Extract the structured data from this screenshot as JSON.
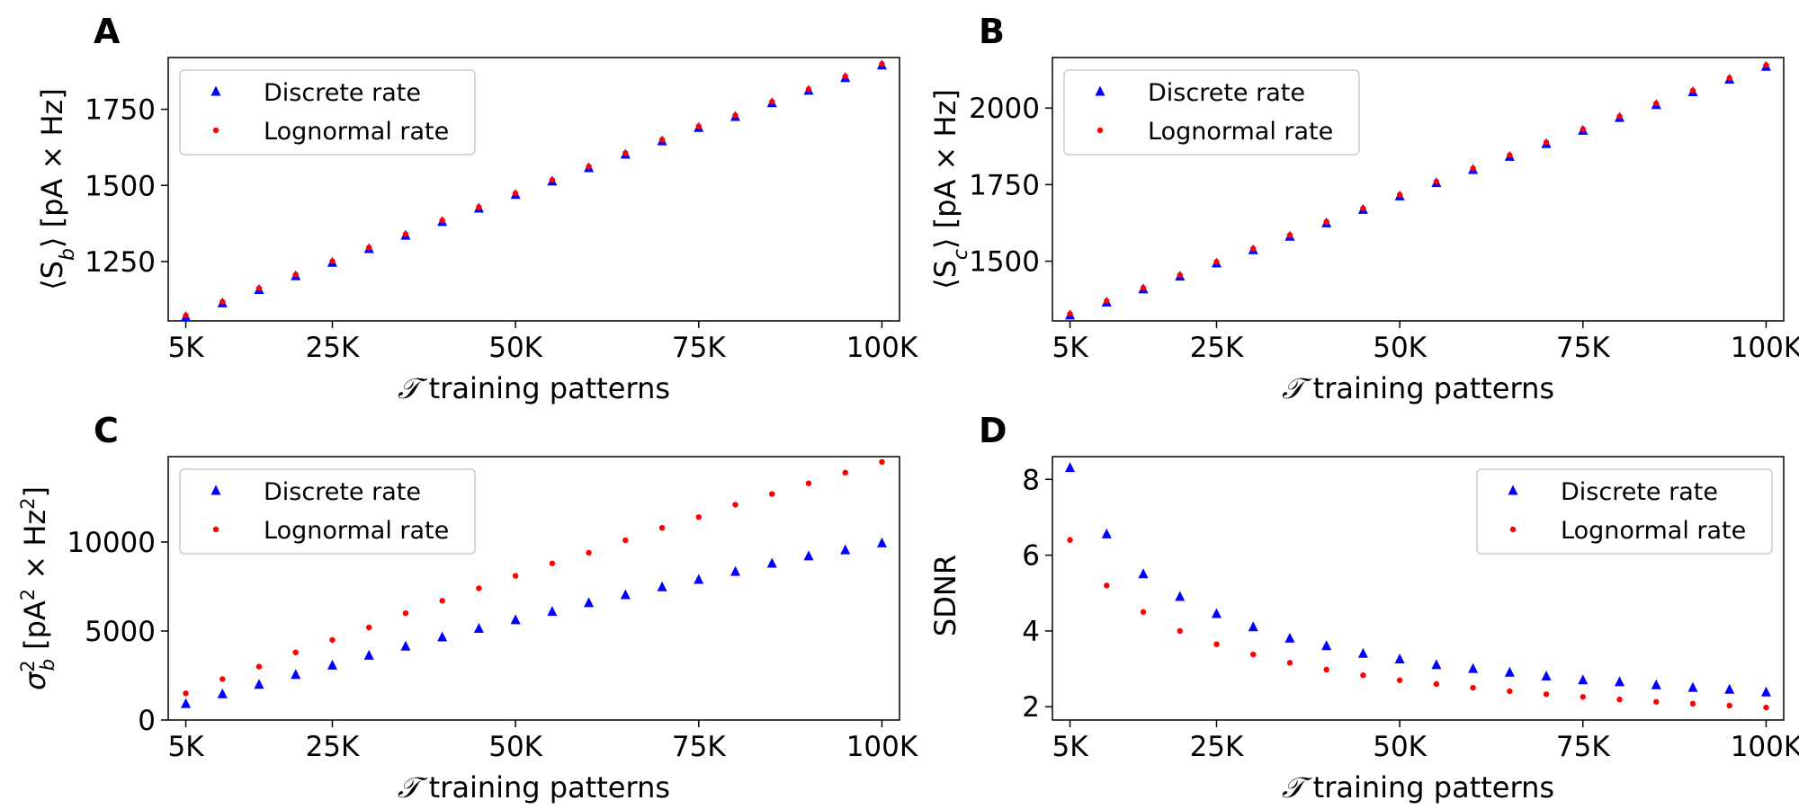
{
  "colors": {
    "discrete": "#0000ff",
    "lognormal": "#ff0000"
  },
  "chart_data": [
    {
      "panel": "A",
      "type": "scatter",
      "xlabel_symbol": "𝒯",
      "xlabel": "training patterns",
      "ylabel": "⟨S_b⟩ [pA × Hz]",
      "xlim": [
        2600,
        102400
      ],
      "ylim": [
        1055,
        1920
      ],
      "xticks": [
        5000,
        25000,
        50000,
        75000,
        100000
      ],
      "xtick_labels": [
        "5K",
        "25K",
        "50K",
        "75K",
        "100K"
      ],
      "yticks": [
        1250,
        1500,
        1750
      ],
      "ytick_labels": [
        "1250",
        "1500",
        "1750"
      ],
      "legend_loc": "upper left",
      "x": [
        5000,
        10000,
        15000,
        20000,
        25000,
        30000,
        35000,
        40000,
        45000,
        50000,
        55000,
        60000,
        65000,
        70000,
        75000,
        80000,
        85000,
        90000,
        95000,
        100000
      ],
      "series": [
        {
          "name": "Discrete rate",
          "marker": "triangle",
          "color": "#0000ff",
          "values": [
            1068,
            1113,
            1157,
            1202,
            1246,
            1291,
            1335,
            1380,
            1424,
            1469,
            1513,
            1557,
            1601,
            1645,
            1689,
            1725,
            1770,
            1811,
            1853,
            1894
          ]
        },
        {
          "name": "Lognormal rate",
          "marker": "dot",
          "color": "#ff0000",
          "values": [
            1073,
            1118,
            1162,
            1207,
            1251,
            1296,
            1340,
            1385,
            1429,
            1474,
            1518,
            1562,
            1606,
            1650,
            1694,
            1730,
            1775,
            1816,
            1858,
            1899
          ]
        }
      ]
    },
    {
      "panel": "B",
      "type": "scatter",
      "xlabel_symbol": "𝒯",
      "xlabel": "training patterns",
      "ylabel": "⟨S_c⟩ [pA × Hz]",
      "xlim": [
        2600,
        102400
      ],
      "ylim": [
        1305,
        2165
      ],
      "xticks": [
        5000,
        25000,
        50000,
        75000,
        100000
      ],
      "xtick_labels": [
        "5K",
        "25K",
        "50K",
        "75K",
        "100K"
      ],
      "yticks": [
        1500,
        1750,
        2000
      ],
      "ytick_labels": [
        "1500",
        "1750",
        "2000"
      ],
      "legend_loc": "upper left",
      "x": [
        5000,
        10000,
        15000,
        20000,
        25000,
        30000,
        35000,
        40000,
        45000,
        50000,
        55000,
        60000,
        65000,
        70000,
        75000,
        80000,
        85000,
        90000,
        95000,
        100000
      ],
      "series": [
        {
          "name": "Discrete rate",
          "marker": "triangle",
          "color": "#0000ff",
          "values": [
            1323,
            1365,
            1408,
            1450,
            1493,
            1536,
            1580,
            1624,
            1668,
            1712,
            1755,
            1798,
            1841,
            1883,
            1926,
            1968,
            2010,
            2052,
            2093,
            2135
          ]
        },
        {
          "name": "Lognormal rate",
          "marker": "dot",
          "color": "#ff0000",
          "values": [
            1328,
            1370,
            1413,
            1455,
            1498,
            1541,
            1585,
            1629,
            1673,
            1717,
            1760,
            1803,
            1846,
            1888,
            1931,
            1973,
            2015,
            2057,
            2098,
            2140
          ]
        }
      ]
    },
    {
      "panel": "C",
      "type": "scatter",
      "xlabel_symbol": "𝒯",
      "xlabel": "training patterns",
      "ylabel": "σ_b² [pA² × Hz²]",
      "xlim": [
        2600,
        102400
      ],
      "ylim": [
        0,
        14800
      ],
      "xticks": [
        5000,
        25000,
        50000,
        75000,
        100000
      ],
      "xtick_labels": [
        "5K",
        "25K",
        "50K",
        "75K",
        "100K"
      ],
      "yticks": [
        0,
        5000,
        10000
      ],
      "ytick_labels": [
        "0",
        "5000",
        "10000"
      ],
      "legend_loc": "upper left",
      "x": [
        5000,
        10000,
        15000,
        20000,
        25000,
        30000,
        35000,
        40000,
        45000,
        50000,
        55000,
        60000,
        65000,
        70000,
        75000,
        80000,
        85000,
        90000,
        95000,
        100000
      ],
      "series": [
        {
          "name": "Discrete rate",
          "marker": "triangle",
          "color": "#0000ff",
          "values": [
            900,
            1450,
            1980,
            2540,
            3060,
            3620,
            4130,
            4650,
            5130,
            5610,
            6080,
            6570,
            7020,
            7460,
            7880,
            8330,
            8790,
            9200,
            9540,
            9930
          ]
        },
        {
          "name": "Lognormal rate",
          "marker": "dot",
          "color": "#ff0000",
          "values": [
            1500,
            2300,
            3000,
            3800,
            4500,
            5200,
            6000,
            6700,
            7400,
            8100,
            8800,
            9400,
            10100,
            10800,
            11400,
            12100,
            12700,
            13300,
            13900,
            14500
          ]
        }
      ]
    },
    {
      "panel": "D",
      "type": "scatter",
      "xlabel_symbol": "𝒯",
      "xlabel": "training patterns",
      "ylabel": "SDNR",
      "xlim": [
        2600,
        102400
      ],
      "ylim": [
        1.65,
        8.6
      ],
      "xticks": [
        5000,
        25000,
        50000,
        75000,
        100000
      ],
      "xtick_labels": [
        "5K",
        "25K",
        "50K",
        "75K",
        "100K"
      ],
      "yticks": [
        2,
        4,
        6,
        8
      ],
      "ytick_labels": [
        "2",
        "4",
        "6",
        "8"
      ],
      "legend_loc": "upper right",
      "x": [
        5000,
        10000,
        15000,
        20000,
        25000,
        30000,
        35000,
        40000,
        45000,
        50000,
        55000,
        60000,
        65000,
        70000,
        75000,
        80000,
        85000,
        90000,
        95000,
        100000
      ],
      "series": [
        {
          "name": "Discrete rate",
          "marker": "triangle",
          "color": "#0000ff",
          "values": [
            8.3,
            6.55,
            5.5,
            4.9,
            4.45,
            4.1,
            3.8,
            3.6,
            3.4,
            3.25,
            3.1,
            3.0,
            2.9,
            2.8,
            2.7,
            2.65,
            2.57,
            2.5,
            2.45,
            2.38
          ]
        },
        {
          "name": "Lognormal rate",
          "marker": "dot",
          "color": "#ff0000",
          "values": [
            6.4,
            5.2,
            4.5,
            4.0,
            3.65,
            3.38,
            3.16,
            2.98,
            2.83,
            2.7,
            2.6,
            2.5,
            2.41,
            2.33,
            2.26,
            2.19,
            2.13,
            2.08,
            2.03,
            1.98
          ]
        }
      ]
    }
  ]
}
